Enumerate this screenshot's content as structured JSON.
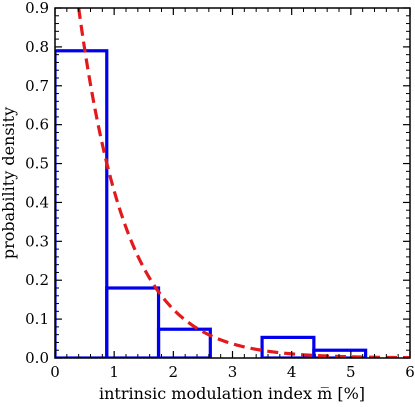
{
  "chart_data": {
    "type": "histogram",
    "xlabel": "intrinsic modulation index m̅ [%]",
    "ylabel": "probability density",
    "xlim": [
      0,
      6
    ],
    "ylim": [
      0,
      0.9
    ],
    "xticks": [
      "0",
      "1",
      "2",
      "3",
      "4",
      "5",
      "6"
    ],
    "yticks": [
      "0.0",
      "0.1",
      "0.2",
      "0.3",
      "0.4",
      "0.5",
      "0.6",
      "0.7",
      "0.8",
      "0.9"
    ],
    "grid": false,
    "legend": "none",
    "histogram": {
      "color": "#0000ee",
      "bin_edges": [
        0,
        0.875,
        1.75,
        2.625,
        3.5,
        4.375,
        5.25,
        6.0
      ],
      "values": [
        0.79,
        0.18,
        0.074,
        0.0,
        0.053,
        0.02,
        0.0
      ]
    },
    "fit_curve": {
      "color": "#e31a1c",
      "style": "dashed",
      "function": "exponential",
      "x": [
        0.4,
        0.5,
        0.6,
        0.8,
        1.0,
        1.2,
        1.5,
        1.8,
        2.0,
        2.5,
        3.0,
        3.5,
        4.0,
        4.5,
        5.0,
        5.5,
        6.0
      ],
      "y": [
        0.9,
        0.794,
        0.7,
        0.545,
        0.424,
        0.331,
        0.228,
        0.157,
        0.122,
        0.067,
        0.037,
        0.02,
        0.011,
        0.006,
        0.003,
        0.002,
        0.001
      ]
    }
  }
}
